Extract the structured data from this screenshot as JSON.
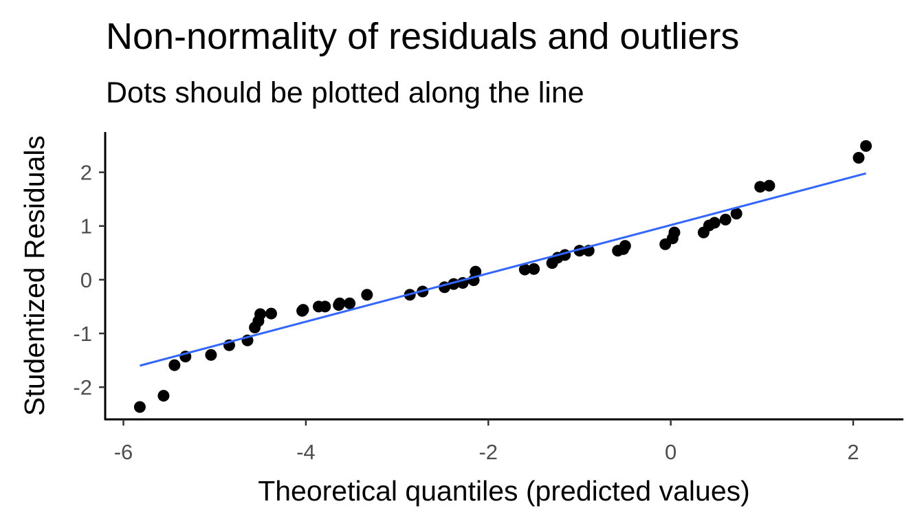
{
  "chart_data": {
    "type": "scatter",
    "title": "Non-normality of residuals and outliers",
    "subtitle": "Dots should be plotted along the line",
    "xlabel": "Theoretical quantiles (predicted values)",
    "ylabel": "Studentized Residuals",
    "xlim": [
      -6.2,
      2.55
    ],
    "ylim": [
      -2.6,
      2.75
    ],
    "x_ticks": [
      -6,
      -4,
      -2,
      0,
      2
    ],
    "y_ticks": [
      -2,
      -1,
      0,
      1,
      2
    ],
    "grid": false,
    "point_color": "#000000",
    "line_color": "#3366FF",
    "reference_line": {
      "x": [
        -5.82,
        2.14
      ],
      "y": [
        -1.6,
        1.98
      ]
    },
    "points": [
      [
        -5.82,
        -2.37
      ],
      [
        -5.56,
        -2.16
      ],
      [
        -5.44,
        -1.59
      ],
      [
        -5.32,
        -1.43
      ],
      [
        -5.04,
        -1.4
      ],
      [
        -4.84,
        -1.22
      ],
      [
        -4.64,
        -1.13
      ],
      [
        -4.56,
        -0.89
      ],
      [
        -4.52,
        -0.77
      ],
      [
        -4.5,
        -0.64
      ],
      [
        -4.38,
        -0.63
      ],
      [
        -4.04,
        -0.58
      ],
      [
        -4.03,
        -0.56
      ],
      [
        -3.86,
        -0.5
      ],
      [
        -3.79,
        -0.5
      ],
      [
        -3.64,
        -0.47
      ],
      [
        -3.63,
        -0.44
      ],
      [
        -3.52,
        -0.44
      ],
      [
        -3.33,
        -0.28
      ],
      [
        -2.86,
        -0.28
      ],
      [
        -2.72,
        -0.22
      ],
      [
        -2.48,
        -0.14
      ],
      [
        -2.38,
        -0.08
      ],
      [
        -2.28,
        -0.06
      ],
      [
        -2.16,
        -0.01
      ],
      [
        -2.14,
        0.15
      ],
      [
        -1.6,
        0.19
      ],
      [
        -1.5,
        0.2
      ],
      [
        -1.3,
        0.31
      ],
      [
        -1.24,
        0.41
      ],
      [
        -1.16,
        0.46
      ],
      [
        -1.0,
        0.54
      ],
      [
        -0.9,
        0.54
      ],
      [
        -0.58,
        0.54
      ],
      [
        -0.52,
        0.57
      ],
      [
        -0.5,
        0.63
      ],
      [
        -0.06,
        0.66
      ],
      [
        0.02,
        0.77
      ],
      [
        0.04,
        0.88
      ],
      [
        0.36,
        0.88
      ],
      [
        0.42,
        1.01
      ],
      [
        0.48,
        1.06
      ],
      [
        0.6,
        1.12
      ],
      [
        0.72,
        1.23
      ],
      [
        0.98,
        1.73
      ],
      [
        1.08,
        1.75
      ],
      [
        2.06,
        2.27
      ],
      [
        2.14,
        2.49
      ]
    ]
  }
}
